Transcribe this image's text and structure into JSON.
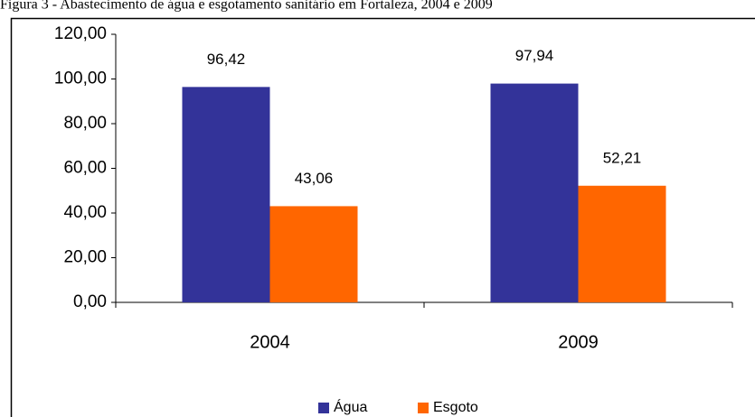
{
  "chart_data": {
    "type": "bar",
    "title": "Figura 3 - Abastecimento de água e esgotamento sanitário em Fortaleza, 2004 e 2009",
    "categories": [
      "2004",
      "2009"
    ],
    "series": [
      {
        "name": "Água",
        "color": "#333399",
        "values": [
          96.42,
          97.94
        ],
        "value_labels": [
          "96,42",
          "97,94"
        ]
      },
      {
        "name": "Esgoto",
        "color": "#ff6600",
        "values": [
          43.06,
          52.21
        ],
        "value_labels": [
          "43,06",
          "52,21"
        ]
      }
    ],
    "ylim": [
      0,
      120
    ],
    "yticks": [
      {
        "value": 0,
        "label": "0,00"
      },
      {
        "value": 20,
        "label": "20,00"
      },
      {
        "value": 40,
        "label": "40,00"
      },
      {
        "value": 60,
        "label": "60,00"
      },
      {
        "value": 80,
        "label": "80,00"
      },
      {
        "value": 100,
        "label": "100,00"
      },
      {
        "value": 120,
        "label": "120,00"
      }
    ],
    "grid": false
  }
}
